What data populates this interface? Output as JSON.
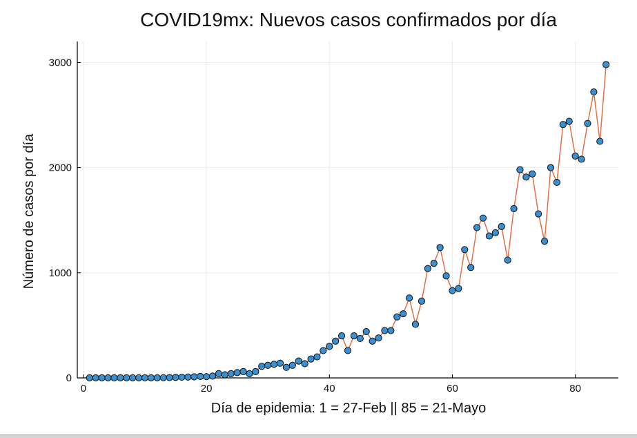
{
  "chart_data": {
    "type": "line",
    "title": "COVID19mx: Nuevos casos confirmados por día",
    "xlabel": "Día de epidemia: 1 = 27-Feb || 85 = 21-Mayo",
    "ylabel": "Número de casos por día",
    "xlim": [
      -1,
      87
    ],
    "ylim": [
      0,
      3200
    ],
    "x_ticks": [
      0,
      20,
      40,
      60,
      80
    ],
    "y_ticks": [
      0,
      1000,
      2000,
      3000
    ],
    "grid": true,
    "legend": "none",
    "colors": {
      "line": "#e26f46",
      "marker_fill": "#3a8fd0",
      "marker_edge": "#111111",
      "grid": "#ececec",
      "axis": "#000000"
    },
    "series": [
      {
        "x": [
          1,
          2,
          3,
          4,
          5,
          6,
          7,
          8,
          9,
          10,
          11,
          12,
          13,
          14,
          15,
          16,
          17,
          18,
          19,
          20,
          21,
          22,
          23,
          24,
          25,
          26,
          27,
          28,
          29,
          30,
          31,
          32,
          33,
          34,
          35,
          36,
          37,
          38,
          39,
          40,
          41,
          42,
          43,
          44,
          45,
          46,
          47,
          48,
          49,
          50,
          51,
          52,
          53,
          54,
          55,
          56,
          57,
          58,
          59,
          60,
          61,
          62,
          63,
          64,
          65,
          66,
          67,
          68,
          69,
          70,
          71,
          72,
          73,
          74,
          75,
          76,
          77,
          78,
          79,
          80,
          81,
          82,
          83,
          84,
          85
        ],
        "values": [
          1,
          1,
          1,
          1,
          1,
          1,
          1,
          1,
          1,
          1,
          1,
          1,
          2,
          3,
          5,
          7,
          8,
          10,
          14,
          12,
          17,
          40,
          30,
          40,
          50,
          60,
          40,
          60,
          110,
          120,
          130,
          140,
          100,
          120,
          160,
          135,
          180,
          200,
          260,
          300,
          350,
          400,
          260,
          400,
          375,
          440,
          350,
          380,
          450,
          450,
          580,
          610,
          760,
          510,
          730,
          1040,
          1090,
          1240,
          970,
          830,
          850,
          1220,
          1050,
          1430,
          1520,
          1350,
          1380,
          1440,
          1120,
          1610,
          1980,
          1910,
          1940,
          1560,
          1300,
          2000,
          1860,
          2410,
          2440,
          2110,
          2080,
          2420,
          2720,
          2250,
          2980
        ]
      }
    ]
  }
}
